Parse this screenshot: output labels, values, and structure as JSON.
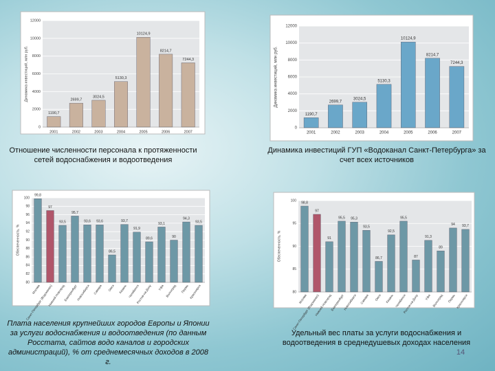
{
  "chart_data": [
    {
      "type": "bar",
      "caption": "Отношение численности персонала к протяженности сетей водоснабжения и водоотведения",
      "y_label": "Динамика инвестиций, млн руб.",
      "categories": [
        "2001",
        "2002",
        "2003",
        "2004",
        "2005",
        "2006",
        "2007"
      ],
      "values": [
        1190.7,
        2699.7,
        3024.5,
        5130.3,
        10124.9,
        8214.7,
        7244.3
      ],
      "value_labels": [
        "1190,7",
        "2699,7",
        "3024,5",
        "5130,3",
        "10124,9",
        "8214,7",
        "7244,3"
      ],
      "color": "#c9b29e",
      "ylim": [
        0,
        12000
      ],
      "yticks": [
        0,
        2000,
        4000,
        6000,
        8000,
        10000,
        12000
      ],
      "grid": true
    },
    {
      "type": "bar",
      "caption": "Динамика инвестиций ГУП «Водоканал Санкт-Петербурга» за счет всех источников",
      "y_label": "Динамика инвестиций, млн руб.",
      "categories": [
        "2001",
        "2002",
        "2003",
        "2004",
        "2005",
        "2006",
        "2007"
      ],
      "values": [
        1190.7,
        2699.7,
        3024.5,
        5130.3,
        10124.9,
        8214.7,
        7244.3
      ],
      "value_labels": [
        "1190,7",
        "2699,7",
        "3024,5",
        "5130,3",
        "10124,9",
        "8214,7",
        "7244,3"
      ],
      "color": "#6aa7c9",
      "ylim": [
        0,
        12000
      ],
      "yticks": [
        0,
        2000,
        4000,
        6000,
        8000,
        10000,
        12000
      ],
      "grid": true
    },
    {
      "type": "bar",
      "caption": "Плата населения крупнейших городов Европы и Японии за услуги водоснабжения и водоотведения (по данным Росстата, сайтов водо каналов и городских администраций), % от среднемесячных доходов в 2008 г.",
      "y_label": "Обеспеченность, %",
      "categories": [
        "Москва",
        "Санкт-Петербург (Водоканал)",
        "Нижний Новгород",
        "Екатеринбург",
        "Новосибирск",
        "Самара",
        "Омск",
        "Казань",
        "Челябинск",
        "Ростов-на-Дону",
        "Уфа",
        "Волгоград",
        "Пермь",
        "Красноярск"
      ],
      "values": [
        99.8,
        97,
        93.5,
        95.7,
        93.6,
        93.6,
        86.5,
        93.7,
        91.9,
        89.6,
        93.1,
        90,
        94.3,
        93.5
      ],
      "value_labels": [
        "99,8",
        "97",
        "93,5",
        "95,7",
        "93,6",
        "93,6",
        "86,5",
        "93,7",
        "91,9",
        "89,6",
        "93,1",
        "90",
        "94,3",
        "93,5"
      ],
      "colors": [
        "#6d98a6",
        "#b0566a",
        "#6d98a6",
        "#6d98a6",
        "#6d98a6",
        "#6d98a6",
        "#6d98a6",
        "#6d98a6",
        "#6d98a6",
        "#6d98a6",
        "#6d98a6",
        "#6d98a6",
        "#6d98a6",
        "#6d98a6"
      ],
      "ylim": [
        80,
        100
      ],
      "yticks": [
        80,
        82,
        84,
        86,
        88,
        90,
        92,
        94,
        96,
        98,
        100
      ],
      "grid": true
    },
    {
      "type": "bar",
      "caption": "Удельный вес платы за услуги водоснабжения и водоотведения в среднедушевых доходах населения",
      "y_label": "Обеспеченность, %",
      "categories": [
        "Москва",
        "Санкт-Петербург (Водоканал)",
        "Нижний Новгород",
        "Екатеринбург",
        "Новосибирск",
        "Самара",
        "Омск",
        "Казань",
        "Челябинск",
        "Ростов-на-Дону",
        "Уфа",
        "Волгоград",
        "Пермь",
        "Красноярск"
      ],
      "values": [
        98.8,
        97,
        91,
        95.5,
        95.3,
        93.5,
        86.7,
        92.5,
        95.5,
        87,
        91.3,
        89,
        94,
        93.7
      ],
      "value_labels": [
        "98,8",
        "97",
        "91",
        "95,5",
        "95,3",
        "93,5",
        "86,7",
        "92,5",
        "95,5",
        "87",
        "91,3",
        "89",
        "94",
        "93,7"
      ],
      "colors": [
        "#6d98a6",
        "#b0566a",
        "#6d98a6",
        "#6d98a6",
        "#6d98a6",
        "#6d98a6",
        "#6d98a6",
        "#6d98a6",
        "#6d98a6",
        "#6d98a6",
        "#6d98a6",
        "#6d98a6",
        "#6d98a6",
        "#6d98a6"
      ],
      "ylim": [
        80,
        100
      ],
      "yticks": [
        80,
        85,
        90,
        95,
        100
      ],
      "grid": true
    }
  ],
  "page_number": "14"
}
